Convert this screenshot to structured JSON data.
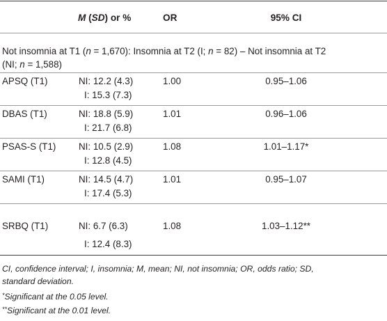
{
  "table": {
    "header": {
      "col_m_italic": "M",
      "col_m_open": " (",
      "col_m_sd_italic": "SD",
      "col_m_close": ") or %",
      "col_or": "OR",
      "col_ci": "95% CI"
    },
    "group": {
      "line1_a": "Not insomnia at T1 (",
      "line1_n": "n",
      "line1_b": " = 1,670): Insomnia at T2 (I; ",
      "line1_n2": "n",
      "line1_c": " = 82) – Not insomnia at T2",
      "line2_a": "(NI; ",
      "line2_n": "n",
      "line2_b": " = 1,588)"
    },
    "rows": [
      {
        "label": "APSQ (T1)",
        "ni": "NI: 12.2 (4.3)",
        "i": "I: 15.3 (7.3)",
        "or": "1.00",
        "ci": "0.95–1.06"
      },
      {
        "label": "DBAS (T1)",
        "ni": "NI: 18.8 (5.9)",
        "i": "I: 21.7 (6.8)",
        "or": "1.01",
        "ci": "0.96–1.06"
      },
      {
        "label": "PSAS-S (T1)",
        "ni": "NI: 10.5 (2.9)",
        "i": "I: 12.8 (4.5)",
        "or": "1.08",
        "ci": "1.01–1.17*"
      },
      {
        "label": "SAMI (T1)",
        "ni": "NI: 14.5 (4.7)",
        "i": "I: 17.4 (5.3)",
        "or": "1.01",
        "ci": "0.95–1.07"
      },
      {
        "label": "SRBQ (T1)",
        "ni": "NI: 6.7 (6.3)",
        "i": "I: 12.4 (8.3)",
        "or": "1.08",
        "ci": "1.03–1.12**"
      }
    ]
  },
  "footnotes": {
    "abbrev_line1": "CI, confidence interval; I, insomnia; M, mean; NI, not insomnia; OR, odds ratio; SD,",
    "abbrev_line2": "standard deviation.",
    "sig1_mark": "*",
    "sig1_text": "Significant at the 0.05 level.",
    "sig2_mark": "**",
    "sig2_text": "Significant at the 0.01 level."
  }
}
